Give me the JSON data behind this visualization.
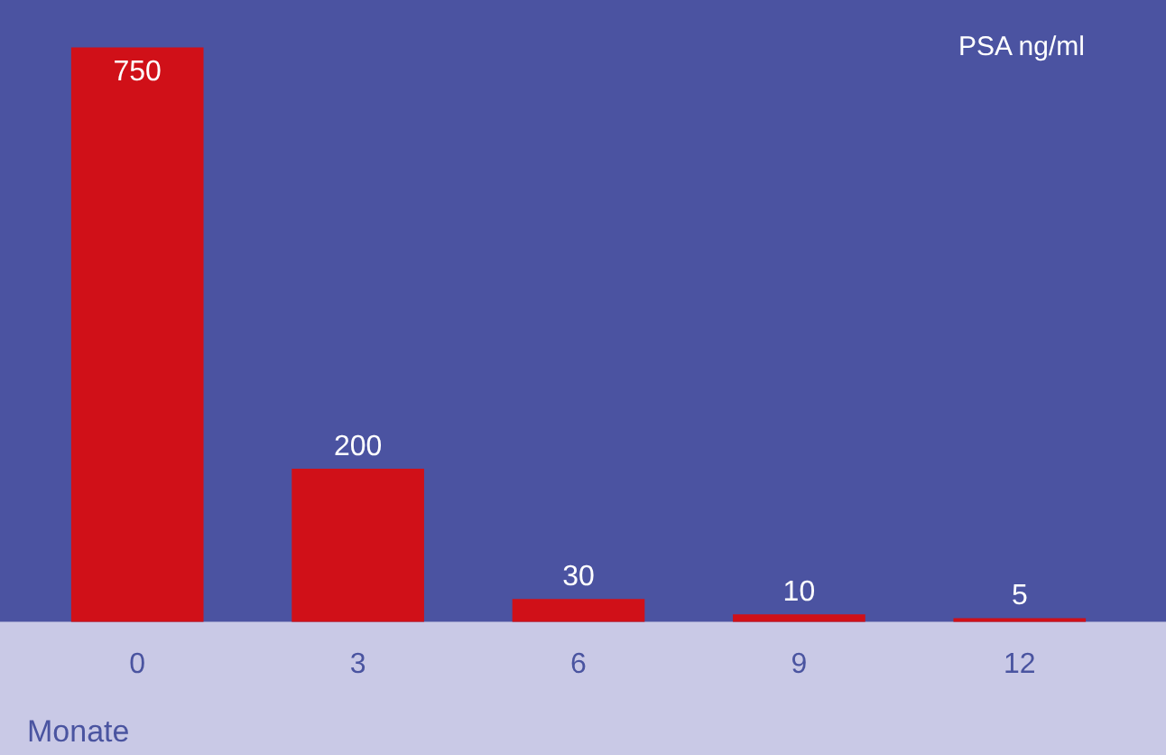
{
  "chart_data": {
    "type": "bar",
    "categories": [
      "0",
      "3",
      "6",
      "9",
      "12"
    ],
    "values": [
      750,
      200,
      30,
      10,
      5
    ],
    "color": "#d01018",
    "ylabel": "PSA ng/ml",
    "xlabel": "Monate",
    "data_labels": true,
    "grid": false,
    "legend": false
  }
}
